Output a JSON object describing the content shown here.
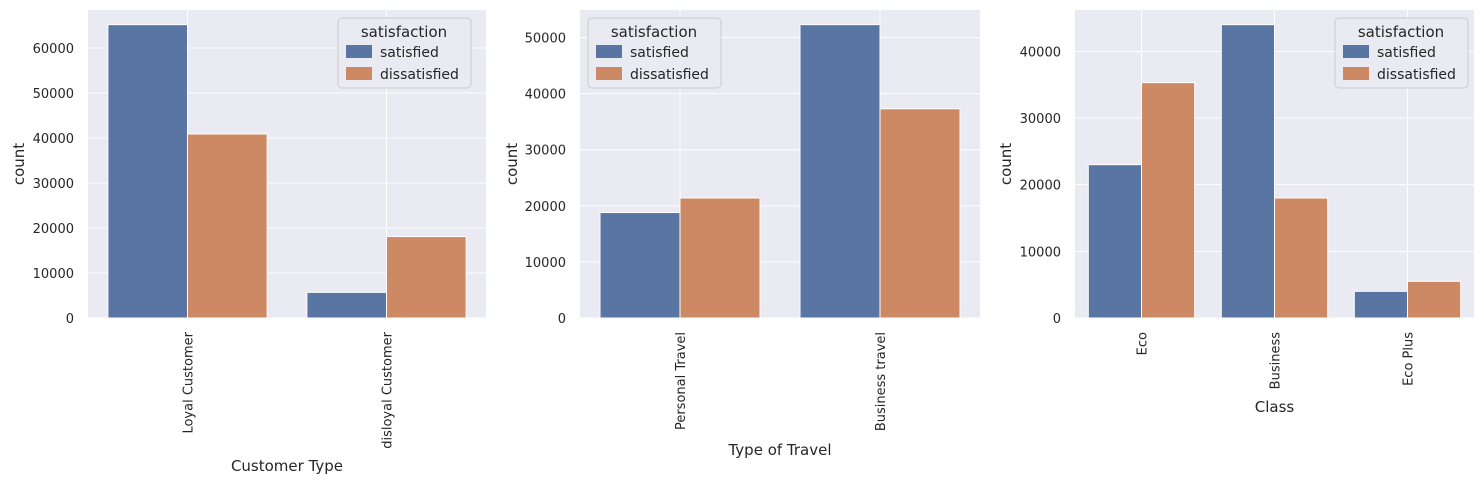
{
  "chart_data": [
    {
      "type": "bar",
      "xlabel": "Customer Type",
      "ylabel": "count",
      "categories": [
        "Loyal Customer",
        "disloyal Customer"
      ],
      "series": [
        {
          "name": "satisfied",
          "values": [
            65200,
            5700
          ]
        },
        {
          "name": "dissatisfied",
          "values": [
            40900,
            18100
          ]
        }
      ],
      "ylim": [
        0,
        68460
      ],
      "yticks": [
        0,
        10000,
        20000,
        30000,
        40000,
        50000,
        60000
      ],
      "legend": {
        "title": "satisfaction",
        "position": "top-right"
      },
      "grid": true
    },
    {
      "type": "bar",
      "xlabel": "Type of Travel",
      "ylabel": "count",
      "categories": [
        "Personal Travel",
        "Business travel"
      ],
      "series": [
        {
          "name": "satisfied",
          "values": [
            18800,
            52300
          ]
        },
        {
          "name": "dissatisfied",
          "values": [
            21400,
            37300
          ]
        }
      ],
      "ylim": [
        0,
        54915
      ],
      "yticks": [
        0,
        10000,
        20000,
        30000,
        40000,
        50000
      ],
      "legend": {
        "title": "satisfaction",
        "position": "top-left"
      },
      "grid": true
    },
    {
      "type": "bar",
      "xlabel": "Class",
      "ylabel": "count",
      "categories": [
        "Eco",
        "Business",
        "Eco Plus"
      ],
      "series": [
        {
          "name": "satisfied",
          "values": [
            23000,
            44000,
            4000
          ]
        },
        {
          "name": "dissatisfied",
          "values": [
            35300,
            18000,
            5500
          ]
        }
      ],
      "ylim": [
        0,
        46200
      ],
      "yticks": [
        0,
        10000,
        20000,
        30000,
        40000
      ],
      "legend": {
        "title": "satisfaction",
        "position": "top-right"
      },
      "grid": true
    }
  ],
  "colors": {
    "satisfied": "#5875a4",
    "dissatisfied": "#cc8963",
    "background": "#eaeaf2"
  }
}
